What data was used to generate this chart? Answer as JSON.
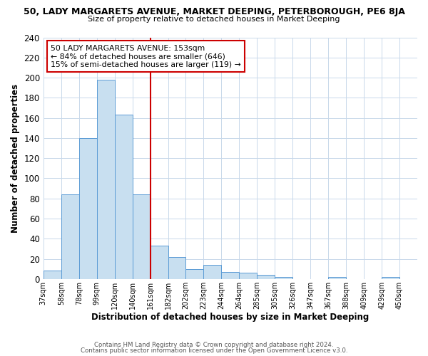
{
  "title_top": "50, LADY MARGARETS AVENUE, MARKET DEEPING, PETERBOROUGH, PE6 8JA",
  "title_sub": "Size of property relative to detached houses in Market Deeping",
  "xlabel": "Distribution of detached houses by size in Market Deeping",
  "ylabel": "Number of detached properties",
  "bar_labels": [
    "37sqm",
    "58sqm",
    "78sqm",
    "99sqm",
    "120sqm",
    "140sqm",
    "161sqm",
    "182sqm",
    "202sqm",
    "223sqm",
    "244sqm",
    "264sqm",
    "285sqm",
    "305sqm",
    "326sqm",
    "347sqm",
    "367sqm",
    "388sqm",
    "409sqm",
    "429sqm",
    "450sqm"
  ],
  "bar_values": [
    8,
    84,
    140,
    198,
    163,
    84,
    33,
    22,
    10,
    14,
    7,
    6,
    4,
    2,
    0,
    0,
    2,
    0,
    0,
    2,
    0
  ],
  "bar_color": "#c8dff0",
  "bar_edge_color": "#5b9bd5",
  "vline_x": 6,
  "vline_color": "#cc0000",
  "annotation_text": "50 LADY MARGARETS AVENUE: 153sqm\n← 84% of detached houses are smaller (646)\n15% of semi-detached houses are larger (119) →",
  "annotation_box_color": "#ffffff",
  "annotation_box_edge": "#cc0000",
  "ylim": [
    0,
    240
  ],
  "yticks": [
    0,
    20,
    40,
    60,
    80,
    100,
    120,
    140,
    160,
    180,
    200,
    220,
    240
  ],
  "footer1": "Contains HM Land Registry data © Crown copyright and database right 2024.",
  "footer2": "Contains public sector information licensed under the Open Government Licence v3.0.",
  "background_color": "#ffffff",
  "grid_color": "#c8d8ea"
}
